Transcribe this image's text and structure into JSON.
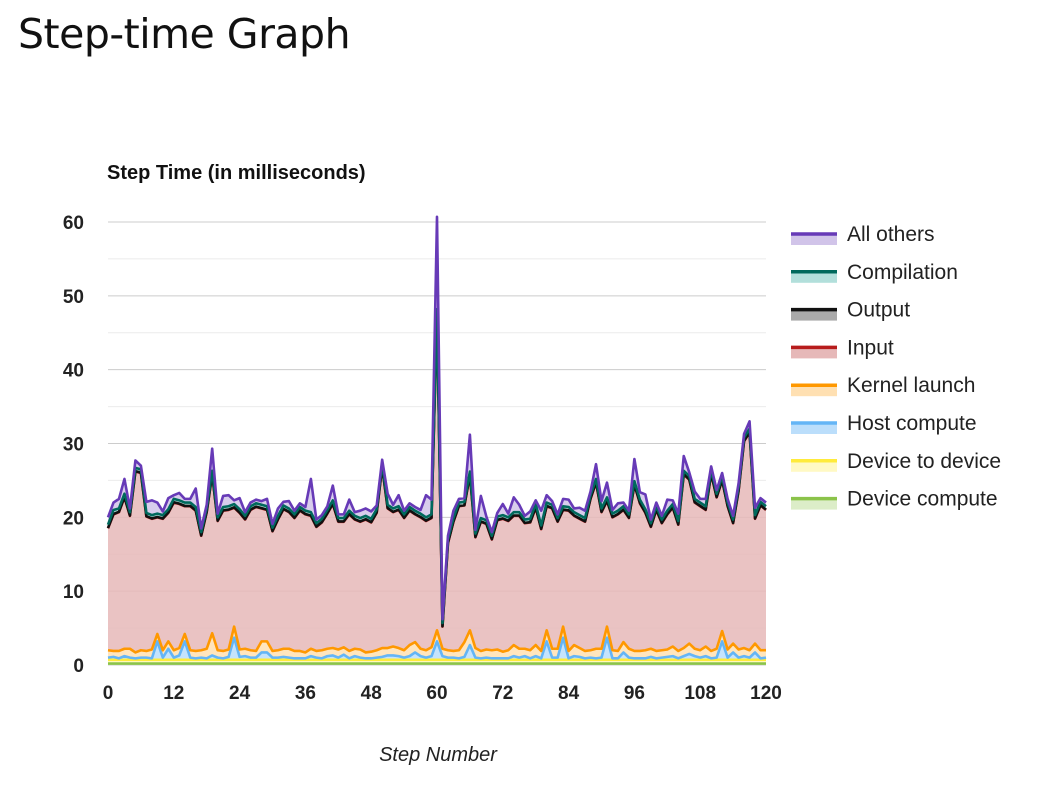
{
  "page": {
    "title": "Step-time Graph"
  },
  "chart_data": {
    "type": "area",
    "stacked": true,
    "title": "Step Time (in milliseconds)",
    "xlabel": "Step Number",
    "ylabel": "",
    "xlim": [
      0,
      120
    ],
    "ylim": [
      0,
      60
    ],
    "xticks": [
      0,
      12,
      24,
      36,
      48,
      60,
      72,
      84,
      96,
      108,
      120
    ],
    "yticks": [
      0,
      10,
      20,
      30,
      40,
      50,
      60
    ],
    "grid": true,
    "legend_position": "right",
    "x": [
      0,
      1,
      2,
      3,
      4,
      5,
      6,
      7,
      8,
      9,
      10,
      11,
      12,
      13,
      14,
      15,
      16,
      17,
      18,
      19,
      20,
      21,
      22,
      23,
      24,
      25,
      26,
      27,
      28,
      29,
      30,
      31,
      32,
      33,
      34,
      35,
      36,
      37,
      38,
      39,
      40,
      41,
      42,
      43,
      44,
      45,
      46,
      47,
      48,
      49,
      50,
      51,
      52,
      53,
      54,
      55,
      56,
      57,
      58,
      59,
      60,
      61,
      62,
      63,
      64,
      65,
      66,
      67,
      68,
      69,
      70,
      71,
      72,
      73,
      74,
      75,
      76,
      77,
      78,
      79,
      80,
      81,
      82,
      83,
      84,
      85,
      86,
      87,
      88,
      89,
      90,
      91,
      92,
      93,
      94,
      95,
      96,
      97,
      98,
      99,
      100,
      101,
      102,
      103,
      104,
      105,
      106,
      107,
      108,
      109,
      110,
      111,
      112,
      113,
      114,
      115,
      116,
      117,
      118,
      119,
      120
    ],
    "series": [
      {
        "name": "Device compute",
        "color": "#8bc34a",
        "fill": "#dcedc8",
        "values": [
          0.2,
          0.2,
          0.2,
          0.2,
          0.2,
          0.2,
          0.2,
          0.2,
          0.2,
          0.2,
          0.2,
          0.2,
          0.2,
          0.2,
          0.2,
          0.2,
          0.2,
          0.2,
          0.2,
          0.2,
          0.2,
          0.2,
          0.2,
          0.2,
          0.2,
          0.2,
          0.2,
          0.2,
          0.2,
          0.2,
          0.2,
          0.2,
          0.2,
          0.2,
          0.2,
          0.2,
          0.2,
          0.2,
          0.2,
          0.2,
          0.2,
          0.2,
          0.2,
          0.2,
          0.2,
          0.2,
          0.2,
          0.2,
          0.2,
          0.2,
          0.2,
          0.2,
          0.2,
          0.2,
          0.2,
          0.2,
          0.2,
          0.2,
          0.2,
          0.2,
          0.2,
          0.2,
          0.2,
          0.2,
          0.2,
          0.2,
          0.2,
          0.2,
          0.2,
          0.2,
          0.2,
          0.2,
          0.2,
          0.2,
          0.2,
          0.2,
          0.2,
          0.2,
          0.2,
          0.2,
          0.2,
          0.2,
          0.2,
          0.2,
          0.2,
          0.2,
          0.2,
          0.2,
          0.2,
          0.2,
          0.2,
          0.2,
          0.2,
          0.2,
          0.2,
          0.2,
          0.2,
          0.2,
          0.2,
          0.2,
          0.2,
          0.2,
          0.2,
          0.2,
          0.2,
          0.2,
          0.2,
          0.2,
          0.2,
          0.2,
          0.2,
          0.2,
          0.2,
          0.2,
          0.2,
          0.2,
          0.2,
          0.2,
          0.2,
          0.2,
          0.2
        ]
      },
      {
        "name": "Device to device",
        "color": "#ffeb3b",
        "fill": "#fff9c4",
        "values": [
          0.5,
          0.5,
          0.5,
          0.5,
          0.5,
          0.5,
          0.5,
          0.5,
          0.5,
          0.5,
          0.5,
          0.5,
          0.5,
          0.5,
          0.5,
          0.5,
          0.5,
          0.5,
          0.5,
          0.5,
          0.5,
          0.5,
          0.5,
          0.5,
          0.5,
          0.5,
          0.5,
          0.5,
          0.5,
          0.5,
          0.5,
          0.5,
          0.5,
          0.5,
          0.5,
          0.5,
          0.5,
          0.5,
          0.5,
          0.5,
          0.5,
          0.5,
          0.5,
          0.5,
          0.5,
          0.5,
          0.5,
          0.5,
          0.5,
          0.5,
          0.5,
          0.5,
          0.5,
          0.5,
          0.5,
          0.5,
          0.5,
          0.5,
          0.5,
          0.5,
          0.5,
          0.5,
          0.5,
          0.5,
          0.5,
          0.5,
          0.5,
          0.5,
          0.5,
          0.5,
          0.5,
          0.5,
          0.5,
          0.5,
          0.5,
          0.5,
          0.5,
          0.5,
          0.5,
          0.5,
          0.5,
          0.5,
          0.5,
          0.5,
          0.5,
          0.5,
          0.5,
          0.5,
          0.5,
          0.5,
          0.5,
          0.5,
          0.5,
          0.5,
          0.5,
          0.5,
          0.5,
          0.5,
          0.5,
          0.5,
          0.5,
          0.5,
          0.5,
          0.5,
          0.5,
          0.5,
          0.5,
          0.5,
          0.5,
          0.5,
          0.5,
          0.5,
          0.5,
          0.5,
          0.5,
          0.5,
          0.5,
          0.5,
          0.5,
          0.5,
          0.5
        ]
      },
      {
        "name": "Host compute",
        "color": "#64b5f6",
        "fill": "#bbdefb",
        "values": [
          0.3,
          0.4,
          0.2,
          0.5,
          0.3,
          0.2,
          0.3,
          0.3,
          0.2,
          2.5,
          0.3,
          1.5,
          0.3,
          0.6,
          2.5,
          0.3,
          0.2,
          0.3,
          0.2,
          0.6,
          0.3,
          0.2,
          0.4,
          3.0,
          0.4,
          0.5,
          0.3,
          0.3,
          1.0,
          1.0,
          0.3,
          0.3,
          0.4,
          0.3,
          0.2,
          0.2,
          0.2,
          0.5,
          0.3,
          0.2,
          0.5,
          0.6,
          0.3,
          0.7,
          0.2,
          0.5,
          0.3,
          0.2,
          0.2,
          0.3,
          0.4,
          0.6,
          0.6,
          0.5,
          0.3,
          0.5,
          1.0,
          0.5,
          0.3,
          0.5,
          2.5,
          0.5,
          0.3,
          0.3,
          0.2,
          0.4,
          2.0,
          0.3,
          0.2,
          0.3,
          0.2,
          0.2,
          0.2,
          0.2,
          0.5,
          0.3,
          0.5,
          0.2,
          0.5,
          0.2,
          2.5,
          0.3,
          0.3,
          3.0,
          0.2,
          0.5,
          0.4,
          0.2,
          0.3,
          0.2,
          0.3,
          3.0,
          0.2,
          0.2,
          1.0,
          0.3,
          0.2,
          0.2,
          0.2,
          0.4,
          0.2,
          0.3,
          0.4,
          0.5,
          0.2,
          0.5,
          0.8,
          0.5,
          0.3,
          0.5,
          0.2,
          0.3,
          2.5,
          0.3,
          1.0,
          0.3,
          0.5,
          0.3,
          1.0,
          0.2,
          0.3
        ]
      },
      {
        "name": "Kernel launch",
        "color": "#ff9800",
        "fill": "#ffe0b2",
        "values": [
          1.0,
          0.8,
          1.0,
          1.0,
          1.2,
          0.8,
          1.0,
          0.9,
          1.2,
          1.0,
          1.0,
          1.0,
          1.0,
          1.0,
          1.0,
          1.0,
          1.0,
          1.0,
          1.3,
          3.0,
          1.0,
          1.0,
          1.0,
          1.5,
          1.0,
          1.0,
          1.0,
          0.9,
          1.5,
          1.5,
          0.9,
          1.0,
          1.1,
          1.2,
          1.0,
          1.0,
          0.8,
          1.0,
          0.9,
          1.1,
          1.0,
          1.0,
          1.1,
          1.0,
          1.0,
          1.0,
          1.1,
          0.8,
          0.9,
          1.0,
          1.2,
          1.0,
          1.2,
          1.1,
          1.0,
          1.5,
          1.4,
          1.0,
          1.0,
          1.2,
          1.5,
          1.0,
          1.0,
          0.9,
          1.1,
          2.0,
          2.0,
          1.3,
          1.0,
          1.1,
          1.1,
          1.2,
          0.9,
          1.1,
          1.5,
          1.2,
          1.0,
          1.1,
          1.5,
          1.0,
          1.5,
          1.2,
          1.2,
          1.5,
          1.0,
          1.5,
          1.2,
          1.0,
          1.0,
          1.3,
          1.2,
          1.5,
          1.1,
          1.0,
          1.4,
          1.2,
          1.0,
          1.0,
          1.1,
          1.1,
          1.0,
          1.0,
          1.0,
          1.3,
          1.0,
          1.1,
          1.4,
          1.0,
          1.0,
          1.3,
          1.0,
          1.2,
          1.4,
          1.1,
          1.2,
          1.1,
          1.1,
          1.0,
          1.2,
          1.1,
          1.0
        ]
      },
      {
        "name": "Input",
        "color": "#b71c1c",
        "fill": "#e6b8b8",
        "values": [
          16.5,
          18.5,
          18.8,
          20.5,
          18.0,
          24.5,
          24.0,
          18.2,
          17.7,
          15.8,
          17.8,
          17.4,
          20.0,
          19.5,
          17.3,
          19.5,
          19.0,
          15.5,
          18.5,
          21.5,
          17.5,
          19.0,
          18.9,
          16.1,
          18.5,
          17.5,
          19.0,
          19.5,
          18.0,
          17.8,
          16.2,
          17.7,
          18.9,
          18.5,
          18.0,
          19.0,
          18.7,
          18.0,
          16.8,
          17.3,
          18.3,
          19.5,
          17.3,
          17.0,
          18.5,
          17.5,
          17.3,
          18.0,
          17.5,
          18.6,
          24.5,
          18.9,
          18.2,
          18.7,
          17.9,
          18.2,
          17.3,
          17.8,
          17.5,
          17.5,
          43.0,
          3.0,
          14.5,
          17.5,
          19.5,
          18.5,
          21.0,
          15.0,
          17.5,
          17.0,
          15.0,
          17.5,
          18.0,
          17.5,
          17.5,
          18.0,
          17.0,
          17.3,
          18.6,
          16.5,
          16.8,
          19.0,
          17.2,
          15.8,
          19.0,
          17.5,
          17.5,
          17.5,
          20.5,
          22.5,
          18.5,
          17.0,
          18.0,
          18.5,
          17.9,
          17.7,
          22.5,
          20.0,
          18.6,
          16.5,
          19.1,
          17.2,
          18.3,
          18.8,
          17.1,
          23.5,
          22.2,
          19.8,
          19.5,
          18.5,
          24.0,
          20.5,
          20.4,
          19.4,
          16.3,
          21.5,
          28.0,
          29.5,
          16.9,
          19.6,
          19.0
        ]
      },
      {
        "name": "Output",
        "color": "#111111",
        "fill": "#aaaaaa",
        "values": [
          0.05,
          0.05,
          0.05,
          0.05,
          0.05,
          0.05,
          0.05,
          0.05,
          0.05,
          0.05,
          0.05,
          0.05,
          0.05,
          0.05,
          0.05,
          0.05,
          0.05,
          0.05,
          0.05,
          0.05,
          0.05,
          0.05,
          0.05,
          0.05,
          0.05,
          0.05,
          0.05,
          0.05,
          0.05,
          0.05,
          0.05,
          0.05,
          0.05,
          0.05,
          0.05,
          0.05,
          0.05,
          0.05,
          0.05,
          0.05,
          0.05,
          0.05,
          0.05,
          0.05,
          0.05,
          0.05,
          0.05,
          0.05,
          0.05,
          0.05,
          0.05,
          0.05,
          0.05,
          0.05,
          0.05,
          0.05,
          0.05,
          0.05,
          0.05,
          0.05,
          0.05,
          0.05,
          0.05,
          0.05,
          0.05,
          0.05,
          0.05,
          0.05,
          0.05,
          0.05,
          0.05,
          0.05,
          0.05,
          0.05,
          0.05,
          0.05,
          0.05,
          0.05,
          0.05,
          0.05,
          0.05,
          0.05,
          0.05,
          0.05,
          0.05,
          0.05,
          0.05,
          0.05,
          0.05,
          0.05,
          0.05,
          0.05,
          0.05,
          0.05,
          0.05,
          0.05,
          0.05,
          0.05,
          0.05,
          0.05,
          0.05,
          0.05,
          0.05,
          0.05,
          0.05,
          0.05,
          0.05,
          0.05,
          0.05,
          0.05,
          0.05,
          0.05,
          0.05,
          0.05,
          0.05,
          0.05,
          0.05,
          0.05,
          0.05,
          0.05,
          0.05
        ]
      },
      {
        "name": "Compilation",
        "color": "#00695c",
        "fill": "#b2dfdb",
        "values": [
          0.45,
          0.55,
          0.45,
          0.45,
          0.45,
          0.45,
          0.45,
          0.45,
          0.45,
          0.45,
          0.45,
          0.45,
          0.45,
          0.45,
          0.45,
          0.45,
          0.45,
          0.45,
          0.45,
          0.45,
          0.45,
          0.45,
          0.45,
          0.45,
          0.45,
          0.45,
          0.45,
          0.45,
          0.45,
          0.45,
          0.45,
          0.45,
          0.45,
          0.45,
          0.45,
          0.45,
          0.45,
          0.45,
          0.45,
          0.45,
          0.45,
          0.45,
          0.45,
          0.45,
          0.45,
          0.45,
          0.45,
          0.45,
          0.45,
          0.45,
          0.45,
          0.45,
          0.45,
          0.45,
          0.45,
          0.45,
          0.45,
          0.45,
          0.45,
          0.45,
          0.45,
          0.45,
          0.45,
          0.45,
          0.45,
          0.45,
          0.45,
          0.45,
          0.45,
          0.45,
          0.45,
          0.45,
          0.45,
          0.45,
          0.45,
          0.45,
          0.45,
          0.45,
          0.45,
          0.45,
          0.45,
          0.45,
          0.45,
          0.45,
          0.45,
          0.45,
          0.45,
          0.45,
          0.45,
          0.45,
          0.45,
          0.45,
          0.45,
          0.45,
          0.45,
          0.45,
          0.45,
          0.45,
          0.45,
          0.45,
          0.45,
          0.45,
          0.45,
          0.45,
          0.45,
          0.45,
          0.45,
          0.45,
          0.45,
          0.45,
          0.45,
          0.45,
          0.45,
          0.45,
          0.45,
          0.45,
          0.45,
          0.45,
          0.45,
          0.45,
          0.45
        ]
      },
      {
        "name": "All others",
        "color": "#673ab7",
        "fill": "#d1c4e9",
        "values": [
          1.0,
          1.0,
          1.3,
          2.0,
          0.5,
          1.0,
          0.5,
          1.5,
          2.0,
          1.5,
          0.5,
          1.5,
          0.5,
          1.0,
          0.5,
          0.5,
          2.5,
          0.5,
          0.5,
          3.0,
          0.5,
          1.5,
          1.5,
          0.5,
          1.5,
          0.5,
          0.5,
          0.5,
          0.5,
          1.0,
          0.5,
          1.0,
          0.5,
          1.0,
          0.5,
          0.5,
          0.5,
          4.5,
          0.5,
          0.5,
          0.5,
          2.0,
          0.5,
          0.5,
          1.5,
          0.5,
          1.0,
          1.0,
          1.0,
          0.5,
          0.5,
          1.5,
          0.5,
          1.5,
          0.5,
          0.5,
          0.5,
          0.5,
          3.0,
          2.0,
          12.5,
          0.5,
          0.5,
          1.0,
          0.5,
          0.5,
          5.0,
          0.5,
          3.0,
          0.5,
          0.5,
          0.5,
          1.5,
          0.5,
          2.0,
          1.0,
          0.5,
          1.0,
          0.5,
          2.0,
          1.0,
          0.5,
          0.5,
          1.0,
          1.0,
          0.5,
          1.0,
          1.0,
          0.5,
          2.0,
          1.0,
          2.0,
          0.5,
          1.0,
          0.5,
          0.5,
          3.0,
          1.0,
          2.0,
          0.5,
          0.5,
          0.5,
          1.5,
          0.5,
          1.0,
          2.0,
          0.5,
          1.0,
          0.5,
          1.0,
          0.5,
          0.5,
          0.5,
          0.5,
          0.5,
          0.5,
          0.5,
          1.0,
          1.0,
          0.5,
          0.5
        ]
      }
    ]
  }
}
